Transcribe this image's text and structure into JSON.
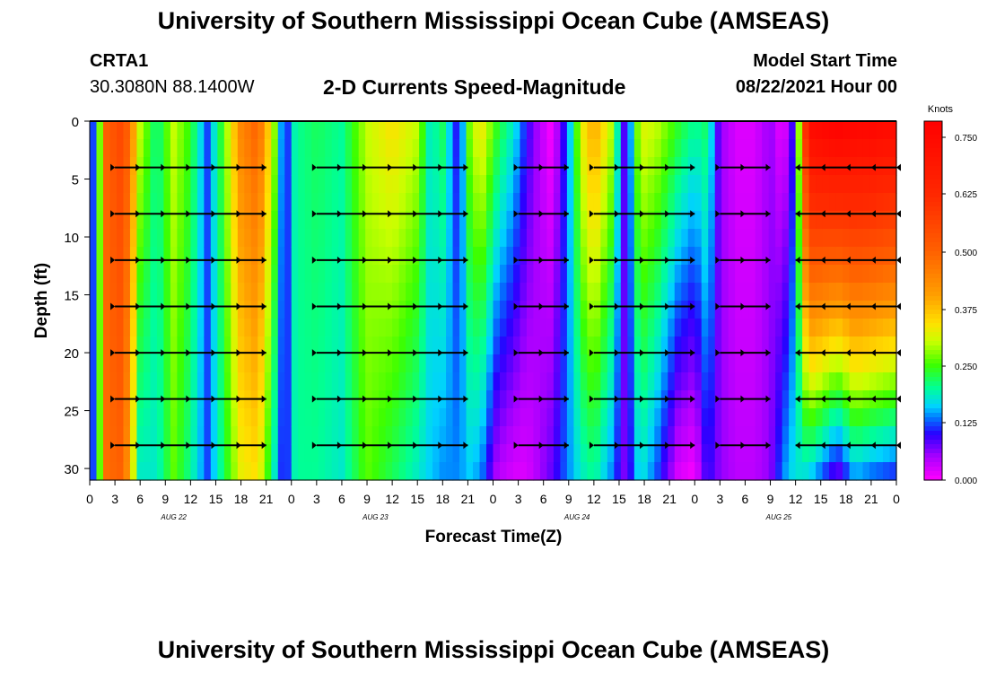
{
  "header": {
    "title": "University of Southern Mississippi Ocean Cube (AMSEAS)",
    "footer_title": "University of Southern Mississippi Ocean Cube (AMSEAS)",
    "station": "CRTA1",
    "coords": "30.3080N  88.1400W",
    "subtitle": "2-D Currents Speed-Magnitude",
    "model_start_label": "Model Start Time",
    "model_start_value": "08/22/2021 Hour 00"
  },
  "chart_data": {
    "type": "heatmap",
    "title": "2-D Currents Speed-Magnitude",
    "xlabel": "Forecast Time(Z)",
    "ylabel": "Depth (ft)",
    "x_tick_labels": [
      "0",
      "3",
      "6",
      "9",
      "12",
      "15",
      "18",
      "21",
      "0",
      "3",
      "6",
      "9",
      "12",
      "15",
      "18",
      "21",
      "0",
      "3",
      "6",
      "9",
      "12",
      "15",
      "18",
      "21",
      "0",
      "3",
      "6",
      "9",
      "12",
      "15",
      "18",
      "21",
      "0"
    ],
    "day_labels": [
      "AUG 22",
      "AUG 23",
      "AUG 24",
      "AUG 25"
    ],
    "xlim_hours": [
      0,
      96
    ],
    "ylim_ft": [
      0,
      31
    ],
    "y_ticks": [
      0,
      5,
      10,
      15,
      20,
      25,
      30
    ],
    "colorbar": {
      "label": "Knots",
      "ticks": [
        "0.750",
        "0.625",
        "0.500",
        "0.375",
        "0.250",
        "0.125",
        "0.000"
      ],
      "range": [
        0,
        0.78
      ]
    },
    "speed_profile_knots": [
      {
        "hour": 0,
        "surface": 0.16,
        "bottom": 0.16
      },
      {
        "hour": 0.6,
        "surface": 0.1,
        "bottom": 0.1
      },
      {
        "hour": 2,
        "surface": 0.5,
        "bottom": 0.48
      },
      {
        "hour": 4,
        "surface": 0.56,
        "bottom": 0.5
      },
      {
        "hour": 6,
        "surface": 0.3,
        "bottom": 0.18
      },
      {
        "hour": 8,
        "surface": 0.2,
        "bottom": 0.18
      },
      {
        "hour": 10,
        "surface": 0.3,
        "bottom": 0.26
      },
      {
        "hour": 12,
        "surface": 0.24,
        "bottom": 0.2
      },
      {
        "hour": 14,
        "surface": 0.12,
        "bottom": 0.12
      },
      {
        "hour": 16,
        "surface": 0.26,
        "bottom": 0.22
      },
      {
        "hour": 18,
        "surface": 0.44,
        "bottom": 0.32
      },
      {
        "hour": 20,
        "surface": 0.5,
        "bottom": 0.34
      },
      {
        "hour": 22,
        "surface": 0.28,
        "bottom": 0.18
      },
      {
        "hour": 23.2,
        "surface": 0.08,
        "bottom": 0.08
      },
      {
        "hour": 24.5,
        "surface": 0.2,
        "bottom": 0.2
      },
      {
        "hour": 27,
        "surface": 0.22,
        "bottom": 0.2
      },
      {
        "hour": 30,
        "surface": 0.2,
        "bottom": 0.18
      },
      {
        "hour": 33,
        "surface": 0.3,
        "bottom": 0.26
      },
      {
        "hour": 36,
        "surface": 0.34,
        "bottom": 0.22
      },
      {
        "hour": 39,
        "surface": 0.3,
        "bottom": 0.18
      },
      {
        "hour": 40.5,
        "surface": 0.18,
        "bottom": 0.16
      },
      {
        "hour": 42,
        "surface": 0.22,
        "bottom": 0.14
      },
      {
        "hour": 44,
        "surface": 0.08,
        "bottom": 0.14
      },
      {
        "hour": 45,
        "surface": 0.26,
        "bottom": 0.16
      },
      {
        "hour": 46.5,
        "surface": 0.34,
        "bottom": 0.14
      },
      {
        "hour": 48.5,
        "surface": 0.24,
        "bottom": 0.04
      },
      {
        "hour": 50.5,
        "surface": 0.18,
        "bottom": 0.02
      },
      {
        "hour": 52,
        "surface": 0.1,
        "bottom": 0.02
      },
      {
        "hour": 53,
        "surface": 0.06,
        "bottom": 0.04
      },
      {
        "hour": 55,
        "surface": 0.0,
        "bottom": 0.08
      },
      {
        "hour": 57,
        "surface": 0.14,
        "bottom": 0.14
      },
      {
        "hour": 58.5,
        "surface": 0.32,
        "bottom": 0.18
      },
      {
        "hour": 60,
        "surface": 0.4,
        "bottom": 0.2
      },
      {
        "hour": 62,
        "surface": 0.3,
        "bottom": 0.14
      },
      {
        "hour": 63.8,
        "surface": 0.06,
        "bottom": 0.06
      },
      {
        "hour": 65.5,
        "surface": 0.32,
        "bottom": 0.18
      },
      {
        "hour": 67.5,
        "surface": 0.3,
        "bottom": 0.12
      },
      {
        "hour": 70,
        "surface": 0.24,
        "bottom": 0.02
      },
      {
        "hour": 72,
        "surface": 0.2,
        "bottom": 0.0
      },
      {
        "hour": 73.5,
        "surface": 0.22,
        "bottom": 0.1
      },
      {
        "hour": 75,
        "surface": 0.06,
        "bottom": 0.06
      },
      {
        "hour": 77,
        "surface": 0.02,
        "bottom": 0.04
      },
      {
        "hour": 79,
        "surface": 0.02,
        "bottom": 0.04
      },
      {
        "hour": 81,
        "surface": 0.06,
        "bottom": 0.06
      },
      {
        "hour": 82.5,
        "surface": 0.0,
        "bottom": 0.14
      },
      {
        "hour": 84,
        "surface": 0.12,
        "bottom": 0.18
      },
      {
        "hour": 85.5,
        "surface": 0.74,
        "bottom": 0.16
      },
      {
        "hour": 87,
        "surface": 0.76,
        "bottom": 0.12
      },
      {
        "hour": 89,
        "surface": 0.78,
        "bottom": 0.06
      },
      {
        "hour": 91,
        "surface": 0.76,
        "bottom": 0.14
      },
      {
        "hour": 93,
        "surface": 0.76,
        "bottom": 0.12
      },
      {
        "hour": 96,
        "surface": 0.74,
        "bottom": 0.1
      }
    ],
    "vector_depths_ft": [
      4,
      8,
      12,
      16,
      20,
      24,
      28
    ],
    "vector_groups": [
      {
        "start_hour": 3,
        "end_hour": 21,
        "direction": "east",
        "depths": [
          4,
          8,
          12,
          16,
          20,
          24,
          28
        ]
      },
      {
        "start_hour": 27,
        "end_hour": 45,
        "direction": "east",
        "depths": [
          4,
          8,
          12,
          16,
          20,
          24,
          28
        ]
      },
      {
        "start_hour": 51,
        "end_hour": 57,
        "direction": "east",
        "depths": [
          4,
          8,
          12,
          16,
          20,
          24,
          28
        ]
      },
      {
        "start_hour": 60,
        "end_hour": 72,
        "direction": "east",
        "depths": [
          4,
          8,
          12,
          16,
          20,
          24,
          28
        ]
      },
      {
        "start_hour": 75,
        "end_hour": 81,
        "direction": "east",
        "depths": [
          4,
          8,
          12,
          16,
          20,
          24,
          28
        ]
      },
      {
        "start_hour": 84,
        "end_hour": 96,
        "direction": "west",
        "depths": [
          4,
          8,
          12,
          16,
          20,
          24,
          28
        ]
      }
    ]
  }
}
